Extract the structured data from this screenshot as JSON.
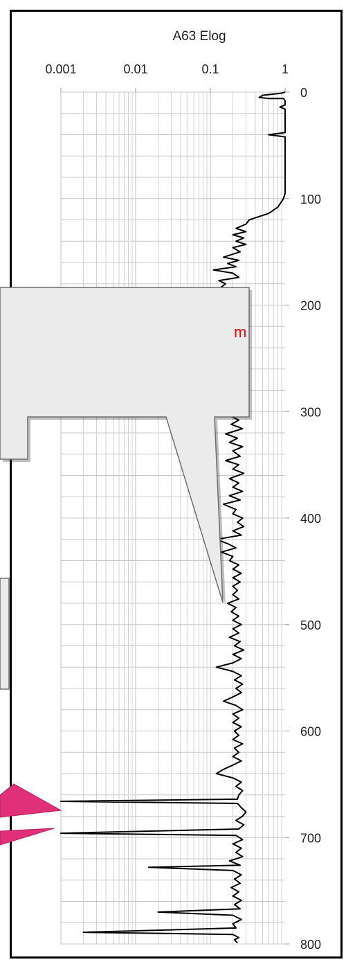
{
  "chart_data": {
    "type": "line",
    "title": "A63 Elog",
    "x_scale": "log",
    "xlim": [
      0.001,
      1
    ],
    "ylim": [
      800,
      0
    ],
    "x_ticks": [
      "0.001",
      "0.01",
      "0.1",
      "1"
    ],
    "y_ticks": [
      "0",
      "100",
      "200",
      "300",
      "400",
      "500",
      "600",
      "700",
      "800"
    ],
    "grid": true,
    "series": [
      {
        "color": "#000000",
        "points": [
          [
            1.0,
            0
          ],
          [
            0.9,
            1
          ],
          [
            0.5,
            3
          ],
          [
            0.45,
            5
          ],
          [
            0.6,
            6
          ],
          [
            0.95,
            6
          ],
          [
            1.0,
            8
          ],
          [
            1.0,
            12
          ],
          [
            0.85,
            14
          ],
          [
            1.0,
            16
          ],
          [
            1.0,
            38
          ],
          [
            0.6,
            40
          ],
          [
            1.0,
            42
          ],
          [
            1.0,
            95
          ],
          [
            0.95,
            100
          ],
          [
            0.8,
            108
          ],
          [
            0.6,
            114
          ],
          [
            0.4,
            118
          ],
          [
            0.33,
            120
          ],
          [
            0.3,
            124
          ],
          [
            0.22,
            128
          ],
          [
            0.3,
            131
          ],
          [
            0.2,
            134
          ],
          [
            0.28,
            137
          ],
          [
            0.22,
            140
          ],
          [
            0.3,
            143
          ],
          [
            0.2,
            146
          ],
          [
            0.25,
            150
          ],
          [
            0.15,
            155
          ],
          [
            0.24,
            158
          ],
          [
            0.17,
            161
          ],
          [
            0.22,
            164
          ],
          [
            0.11,
            167
          ],
          [
            0.2,
            170
          ],
          [
            0.24,
            174
          ],
          [
            0.13,
            177
          ],
          [
            0.16,
            180
          ],
          [
            0.14,
            183
          ],
          [
            0.2,
            186
          ],
          [
            0.27,
            189
          ],
          [
            0.18,
            193
          ],
          [
            0.22,
            197
          ],
          [
            0.16,
            200
          ],
          [
            0.24,
            204
          ],
          [
            0.2,
            208
          ],
          [
            0.27,
            212
          ],
          [
            0.21,
            216
          ],
          [
            0.28,
            220
          ],
          [
            0.18,
            225
          ],
          [
            0.24,
            229
          ],
          [
            0.21,
            233
          ],
          [
            0.28,
            236
          ],
          [
            0.19,
            240
          ],
          [
            0.24,
            244
          ],
          [
            0.16,
            248
          ],
          [
            0.23,
            252
          ],
          [
            0.2,
            256
          ],
          [
            0.27,
            259
          ],
          [
            0.17,
            263
          ],
          [
            0.24,
            267
          ],
          [
            0.2,
            271
          ],
          [
            0.28,
            275
          ],
          [
            0.18,
            279
          ],
          [
            0.23,
            283
          ],
          [
            0.17,
            287
          ],
          [
            0.24,
            291
          ],
          [
            0.2,
            295
          ],
          [
            0.27,
            299
          ],
          [
            0.18,
            304
          ],
          [
            0.24,
            308
          ],
          [
            0.19,
            312
          ],
          [
            0.27,
            316
          ],
          [
            0.16,
            321
          ],
          [
            0.23,
            325
          ],
          [
            0.18,
            329
          ],
          [
            0.27,
            333
          ],
          [
            0.2,
            337
          ],
          [
            0.25,
            342
          ],
          [
            0.16,
            346
          ],
          [
            0.24,
            350
          ],
          [
            0.2,
            354
          ],
          [
            0.28,
            358
          ],
          [
            0.18,
            363
          ],
          [
            0.24,
            367
          ],
          [
            0.2,
            371
          ],
          [
            0.27,
            375
          ],
          [
            0.18,
            379
          ],
          [
            0.25,
            383
          ],
          [
            0.15,
            387
          ],
          [
            0.22,
            392
          ],
          [
            0.2,
            396
          ],
          [
            0.27,
            400
          ],
          [
            0.23,
            404
          ],
          [
            0.28,
            408
          ],
          [
            0.2,
            412
          ],
          [
            0.26,
            416
          ],
          [
            0.12,
            420
          ],
          [
            0.17,
            424
          ],
          [
            0.22,
            428
          ],
          [
            0.14,
            432
          ],
          [
            0.2,
            436
          ],
          [
            0.18,
            440
          ],
          [
            0.24,
            444
          ],
          [
            0.2,
            448
          ],
          [
            0.26,
            452
          ],
          [
            0.2,
            456
          ],
          [
            0.25,
            460
          ],
          [
            0.2,
            464
          ],
          [
            0.23,
            468
          ],
          [
            0.2,
            472
          ],
          [
            0.24,
            476
          ],
          [
            0.17,
            480
          ],
          [
            0.22,
            484
          ],
          [
            0.19,
            488
          ],
          [
            0.24,
            492
          ],
          [
            0.2,
            496
          ],
          [
            0.26,
            500
          ],
          [
            0.2,
            504
          ],
          [
            0.24,
            508
          ],
          [
            0.18,
            512
          ],
          [
            0.25,
            516
          ],
          [
            0.21,
            520
          ],
          [
            0.28,
            524
          ],
          [
            0.2,
            528
          ],
          [
            0.26,
            532
          ],
          [
            0.2,
            536
          ],
          [
            0.12,
            540
          ],
          [
            0.2,
            544
          ],
          [
            0.26,
            548
          ],
          [
            0.21,
            552
          ],
          [
            0.27,
            556
          ],
          [
            0.22,
            560
          ],
          [
            0.26,
            564
          ],
          [
            0.2,
            568
          ],
          [
            0.15,
            572
          ],
          [
            0.22,
            576
          ],
          [
            0.27,
            580
          ],
          [
            0.2,
            584
          ],
          [
            0.24,
            588
          ],
          [
            0.2,
            592
          ],
          [
            0.26,
            596
          ],
          [
            0.21,
            600
          ],
          [
            0.24,
            604
          ],
          [
            0.2,
            608
          ],
          [
            0.27,
            612
          ],
          [
            0.21,
            616
          ],
          [
            0.24,
            620
          ],
          [
            0.2,
            624
          ],
          [
            0.26,
            628
          ],
          [
            0.2,
            632
          ],
          [
            0.15,
            636
          ],
          [
            0.12,
            640
          ],
          [
            0.2,
            644
          ],
          [
            0.26,
            648
          ],
          [
            0.22,
            652
          ],
          [
            0.27,
            656
          ],
          [
            0.24,
            660
          ],
          [
            0.23,
            664
          ],
          [
            0.001,
            666
          ],
          [
            0.23,
            668
          ],
          [
            0.26,
            672
          ],
          [
            0.3,
            676
          ],
          [
            0.27,
            680
          ],
          [
            0.22,
            684
          ],
          [
            0.28,
            688
          ],
          [
            0.24,
            692
          ],
          [
            0.001,
            696
          ],
          [
            0.22,
            698
          ],
          [
            0.27,
            702
          ],
          [
            0.2,
            706
          ],
          [
            0.26,
            710
          ],
          [
            0.22,
            714
          ],
          [
            0.27,
            718
          ],
          [
            0.18,
            722
          ],
          [
            0.25,
            726
          ],
          [
            0.015,
            728
          ],
          [
            0.2,
            731
          ],
          [
            0.26,
            735
          ],
          [
            0.21,
            739
          ],
          [
            0.25,
            743
          ],
          [
            0.19,
            747
          ],
          [
            0.24,
            751
          ],
          [
            0.2,
            755
          ],
          [
            0.26,
            759
          ],
          [
            0.21,
            763
          ],
          [
            0.25,
            767
          ],
          [
            0.02,
            770
          ],
          [
            0.2,
            773
          ],
          [
            0.26,
            777
          ],
          [
            0.2,
            781
          ],
          [
            0.22,
            785
          ],
          [
            0.002,
            789
          ],
          [
            0.2,
            791
          ],
          [
            0.24,
            794
          ],
          [
            0.21,
            796
          ],
          [
            0.23,
            799
          ]
        ]
      }
    ]
  },
  "callouts": [
    {
      "text": "m",
      "color": "#ff0000"
    }
  ]
}
